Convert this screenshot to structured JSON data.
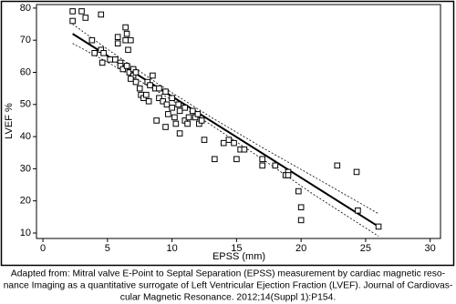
{
  "chart_data": {
    "type": "scatter",
    "xlabel": "EPSS (mm)",
    "ylabel": "LVEF %",
    "xlim": [
      -0.5,
      30.8
    ],
    "ylim": [
      8.3,
      81.1
    ],
    "xticks": [
      0,
      5,
      10,
      15,
      20,
      25,
      30
    ],
    "yticks": [
      10,
      20,
      30,
      40,
      50,
      60,
      70,
      80
    ],
    "color": "#000000",
    "x": [
      2.3,
      2.3,
      3,
      3.3,
      4.5,
      3.8,
      4,
      4.5,
      4.7,
      4.6,
      5.2,
      5.6,
      5.8,
      5.8,
      6,
      6,
      6.2,
      6.4,
      6.5,
      6.4,
      6.6,
      6.8,
      6.5,
      6.7,
      7,
      7,
      7.2,
      7.2,
      6.8,
      7.5,
      7.6,
      7.8,
      8,
      8.1,
      8.2,
      8.5,
      8.3,
      8.7,
      9,
      9,
      8.8,
      9.3,
      9.5,
      9.6,
      9.7,
      9.5,
      10,
      10,
      10.2,
      10.3,
      10.5,
      10.6,
      10.6,
      11,
      11,
      11.2,
      11.3,
      11.6,
      11.8,
      12,
      12.1,
      12.3,
      12.5,
      13.3,
      14,
      14.4,
      14.8,
      15,
      15.3,
      15.6,
      17,
      17,
      18,
      18.8,
      19,
      19,
      19.8,
      20,
      20,
      22.8,
      24.3,
      24.4,
      26
    ],
    "values": [
      79,
      76,
      79,
      77,
      78,
      70,
      66,
      67,
      66,
      63,
      64,
      64,
      71,
      69,
      63,
      62,
      61,
      74,
      72,
      70,
      67,
      70,
      62,
      60,
      61,
      59,
      57,
      60,
      58,
      55,
      53,
      52,
      53,
      57,
      51,
      59,
      56,
      55,
      55,
      52,
      45,
      51,
      54,
      50,
      47,
      43,
      52,
      49,
      46,
      44,
      50,
      48,
      41,
      49,
      45,
      44,
      46,
      48,
      46,
      47,
      44,
      45,
      39,
      33,
      38,
      39,
      38,
      33,
      36,
      36,
      33,
      31,
      31,
      28,
      29,
      28,
      23,
      18,
      14,
      31,
      29,
      17,
      12
    ],
    "fit": {
      "x": [
        2.3,
        26
      ],
      "values": [
        72,
        12
      ]
    },
    "upper_band": {
      "x": [
        2.3,
        5,
        9,
        13,
        17,
        21,
        26
      ],
      "values": [
        75,
        67.2,
        56.2,
        46.1,
        36.6,
        27.5,
        16
      ]
    },
    "lower_band": {
      "x": [
        2.3,
        5,
        9,
        13,
        17,
        21,
        26
      ],
      "values": [
        69,
        63.2,
        53.8,
        43.7,
        33,
        21.9,
        9
      ]
    }
  },
  "caption": [
    "Adapted from: Mitral valve E-Point to Septal Separation (EPSS) measurement by cardiac magnetic reso-",
    "nance Imaging as a quantitative surrogate of Left Ventricular Ejection Fraction (LVEF). Journal of Cardiovas-",
    "cular Magnetic Resonance. 2012;14(Suppl 1):P154."
  ]
}
